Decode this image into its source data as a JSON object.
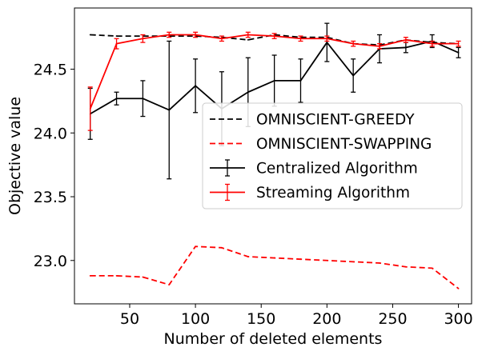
{
  "chart_data": {
    "type": "line",
    "xlabel": "Number of deleted elements",
    "ylabel": "Objective value",
    "xlim": [
      8,
      310
    ],
    "ylim": [
      22.66,
      24.98
    ],
    "xticks": [
      50,
      100,
      150,
      200,
      250,
      300
    ],
    "yticks": [
      23.0,
      23.5,
      24.0,
      24.5
    ],
    "xtick_labels": [
      "50",
      "100",
      "150",
      "200",
      "250",
      "300"
    ],
    "ytick_labels": [
      "23.0",
      "23.5",
      "24.0",
      "24.5"
    ],
    "grid": false,
    "legend_position": "center-right",
    "series": [
      {
        "name": "OMNISCIENT-GREEDY",
        "style": "dashed",
        "color": "#000000",
        "errorbars": false,
        "x": [
          20,
          40,
          60,
          80,
          100,
          120,
          140,
          160,
          180,
          200,
          220,
          240,
          260,
          280,
          300
        ],
        "y": [
          24.77,
          24.76,
          24.76,
          24.76,
          24.76,
          24.75,
          24.73,
          24.77,
          24.75,
          24.75,
          24.7,
          24.69,
          24.73,
          24.71,
          24.7
        ]
      },
      {
        "name": "OMNISCIENT-SWAPPING",
        "style": "dashed",
        "color": "#ff0000",
        "errorbars": false,
        "x": [
          20,
          40,
          60,
          80,
          100,
          120,
          140,
          160,
          180,
          200,
          220,
          240,
          260,
          280,
          300
        ],
        "y": [
          22.88,
          22.88,
          22.87,
          22.81,
          23.11,
          23.1,
          23.03,
          23.02,
          23.01,
          23.0,
          22.99,
          22.98,
          22.95,
          22.94,
          22.78
        ]
      },
      {
        "name": "Centralized Algorithm",
        "style": "solid",
        "color": "#000000",
        "errorbars": true,
        "x": [
          20,
          40,
          60,
          80,
          100,
          120,
          140,
          160,
          180,
          200,
          220,
          240,
          260,
          280,
          300
        ],
        "y": [
          24.15,
          24.27,
          24.27,
          24.18,
          24.37,
          24.19,
          24.32,
          24.41,
          24.41,
          24.71,
          24.45,
          24.66,
          24.67,
          24.72,
          24.63
        ],
        "err": [
          0.2,
          0.05,
          0.14,
          0.54,
          0.21,
          0.29,
          0.27,
          0.2,
          0.17,
          0.15,
          0.13,
          0.11,
          0.04,
          0.05,
          0.04
        ]
      },
      {
        "name": "Streaming Algorithm",
        "style": "solid",
        "color": "#ff0000",
        "errorbars": true,
        "x": [
          20,
          40,
          60,
          80,
          100,
          120,
          140,
          160,
          180,
          200,
          220,
          240,
          260,
          280,
          300
        ],
        "y": [
          24.19,
          24.7,
          24.74,
          24.77,
          24.77,
          24.74,
          24.77,
          24.76,
          24.74,
          24.74,
          24.7,
          24.68,
          24.73,
          24.7,
          24.7
        ],
        "err": [
          0.17,
          0.04,
          0.03,
          0.02,
          0.02,
          0.02,
          0.02,
          0.02,
          0.02,
          0.02,
          0.02,
          0.02,
          0.02,
          0.02,
          0.02
        ]
      }
    ]
  }
}
